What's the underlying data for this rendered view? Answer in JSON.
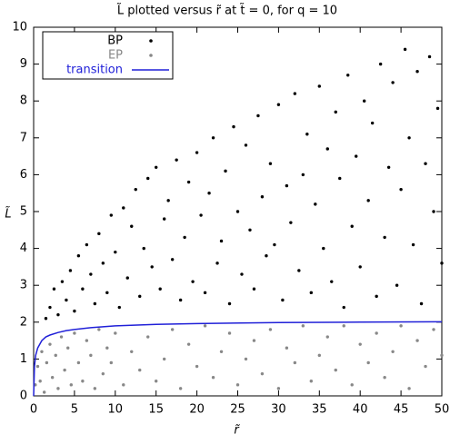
{
  "chart_data": {
    "type": "scatter",
    "title": "L̃ plotted versus r̃ at t̃ = 0, for q = 10",
    "x_label": "r̃",
    "y_label": "L̃",
    "xlim": [
      0,
      50
    ],
    "ylim": [
      0,
      10
    ],
    "xticks": [
      0,
      5,
      10,
      15,
      20,
      25,
      30,
      35,
      40,
      45,
      50
    ],
    "yticks": [
      0,
      1,
      2,
      3,
      4,
      5,
      6,
      7,
      8,
      9,
      10
    ],
    "legend": "top-left",
    "series": [
      {
        "name": "BP",
        "color": "#000000",
        "style": "points",
        "x": [
          1.5,
          2,
          2.5,
          3,
          3.5,
          4,
          4.5,
          5,
          5.5,
          6,
          6.5,
          7,
          7.5,
          8,
          8.5,
          9,
          9.5,
          10,
          10.5,
          11,
          11.5,
          12,
          12.5,
          13,
          13.5,
          14,
          14.5,
          15,
          15.5,
          16,
          16.5,
          17,
          17.5,
          18,
          18.5,
          19,
          19.5,
          20,
          20.5,
          21,
          21.5,
          22,
          22.5,
          23,
          23.5,
          24,
          24.5,
          25,
          25.5,
          26,
          26.5,
          27,
          27.5,
          28,
          28.5,
          29,
          29.5,
          30,
          30.5,
          31,
          31.5,
          32,
          32.5,
          33,
          33.5,
          34,
          34.5,
          35,
          35.5,
          36,
          36.5,
          37,
          37.5,
          38,
          38.5,
          39,
          39.5,
          40,
          40.5,
          41,
          41.5,
          42,
          42.5,
          43,
          43.5,
          44,
          44.5,
          45,
          45.5,
          46,
          46.5,
          47,
          47.5,
          48,
          48.5,
          49,
          49.5,
          50
        ],
        "values": [
          2.1,
          2.4,
          2.9,
          2.2,
          3.1,
          2.6,
          3.4,
          2.3,
          3.8,
          2.9,
          4.1,
          3.3,
          2.5,
          4.4,
          3.6,
          2.8,
          4.9,
          3.9,
          2.4,
          5.1,
          3.2,
          4.6,
          5.6,
          2.7,
          4.0,
          5.9,
          3.5,
          6.2,
          2.9,
          4.8,
          5.3,
          3.7,
          6.4,
          2.6,
          4.3,
          5.8,
          3.1,
          6.6,
          4.9,
          2.8,
          5.5,
          7.0,
          3.6,
          4.2,
          6.1,
          2.5,
          7.3,
          5.0,
          3.3,
          6.8,
          4.5,
          2.9,
          7.6,
          5.4,
          3.8,
          6.3,
          4.1,
          7.9,
          2.6,
          5.7,
          4.7,
          8.2,
          3.4,
          6.0,
          7.1,
          2.8,
          5.2,
          8.4,
          4.0,
          6.7,
          3.1,
          7.7,
          5.9,
          2.4,
          8.7,
          4.6,
          6.5,
          3.5,
          8.0,
          5.3,
          7.4,
          2.7,
          9.0,
          4.3,
          6.2,
          8.5,
          3.0,
          5.6,
          9.4,
          7.0,
          4.1,
          8.8,
          2.5,
          6.3,
          9.2,
          5.0,
          7.8,
          3.6
        ]
      },
      {
        "name": "EP",
        "color": "#888888",
        "style": "points",
        "x": [
          0.2,
          0.5,
          0.8,
          1,
          1.3,
          1.6,
          2,
          2.3,
          2.7,
          3,
          3.4,
          3.8,
          4.2,
          4.6,
          5,
          5.5,
          6,
          6.5,
          7,
          7.5,
          8,
          8.5,
          9,
          9.5,
          10,
          11,
          12,
          13,
          14,
          15,
          16,
          17,
          18,
          19,
          20,
          21,
          22,
          23,
          24,
          25,
          26,
          27,
          28,
          29,
          30,
          31,
          32,
          33,
          34,
          35,
          36,
          37,
          38,
          39,
          40,
          41,
          42,
          43,
          44,
          45,
          46,
          47,
          48,
          49,
          50
        ],
        "values": [
          0.3,
          0.8,
          0.4,
          1.2,
          0.1,
          0.9,
          1.4,
          0.5,
          1.1,
          0.2,
          1.6,
          0.7,
          1.3,
          0.3,
          1.7,
          0.9,
          0.4,
          1.5,
          1.1,
          0.2,
          1.8,
          0.6,
          1.3,
          0.9,
          1.7,
          0.3,
          1.2,
          0.7,
          1.6,
          0.4,
          1.0,
          1.8,
          0.2,
          1.4,
          0.8,
          1.9,
          0.5,
          1.2,
          1.7,
          0.3,
          1.0,
          1.5,
          0.6,
          1.8,
          0.2,
          1.3,
          0.9,
          1.9,
          0.4,
          1.1,
          1.6,
          0.7,
          1.9,
          0.3,
          1.4,
          0.9,
          1.7,
          0.5,
          1.2,
          1.9,
          0.2,
          1.5,
          0.8,
          1.8,
          1.1
        ]
      },
      {
        "name": "transition",
        "color": "#2020d8",
        "style": "line",
        "x": [
          0,
          0.1,
          0.25,
          0.5,
          1,
          1.5,
          2,
          3,
          4,
          5,
          7,
          10,
          15,
          20,
          30,
          40,
          50
        ],
        "values": [
          0,
          0.8,
          1.1,
          1.3,
          1.5,
          1.6,
          1.65,
          1.72,
          1.77,
          1.8,
          1.85,
          1.9,
          1.94,
          1.96,
          1.99,
          2.0,
          2.01
        ]
      }
    ]
  }
}
